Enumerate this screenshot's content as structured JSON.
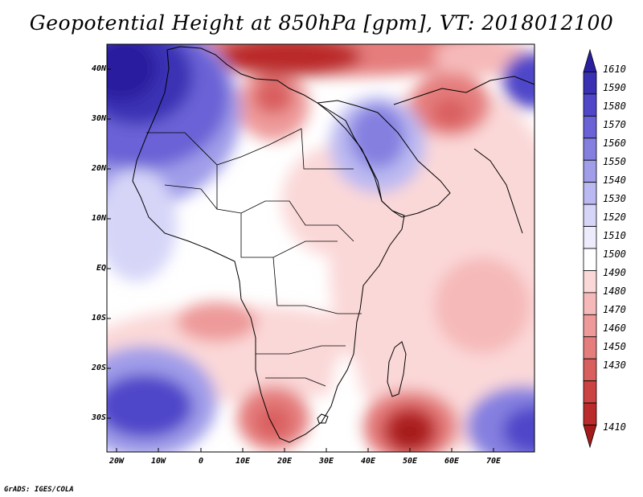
{
  "title": "Geopotential Height at 850hPa [gpm], VT: 2018012100",
  "credit": "GrADS: IGES/COLA",
  "map": {
    "lat_labels": [
      "40N",
      "30N",
      "20N",
      "10N",
      "EQ",
      "10S",
      "20S",
      "30S"
    ],
    "lon_labels": [
      "20W",
      "10W",
      "0",
      "10E",
      "20E",
      "30E",
      "40E",
      "50E",
      "60E",
      "70E"
    ]
  },
  "legend": {
    "levels": [
      "1610",
      "1590",
      "1580",
      "1570",
      "1560",
      "1550",
      "1540",
      "1530",
      "1520",
      "1510",
      "1500",
      "1490",
      "1480",
      "1470",
      "1460",
      "1450",
      "1430",
      "1410"
    ],
    "colors": [
      "#2a1f9e",
      "#3a30b4",
      "#4f46c9",
      "#6a62d6",
      "#8580e0",
      "#a09de9",
      "#bbb9f1",
      "#d6d5f8",
      "#ececfc",
      "#ffffff",
      "#fbd8d8",
      "#f6b9b9",
      "#ee9a9a",
      "#e57d7d",
      "#d95f5f",
      "#cc4343",
      "#bb2b2b",
      "#a51a1a"
    ]
  }
}
